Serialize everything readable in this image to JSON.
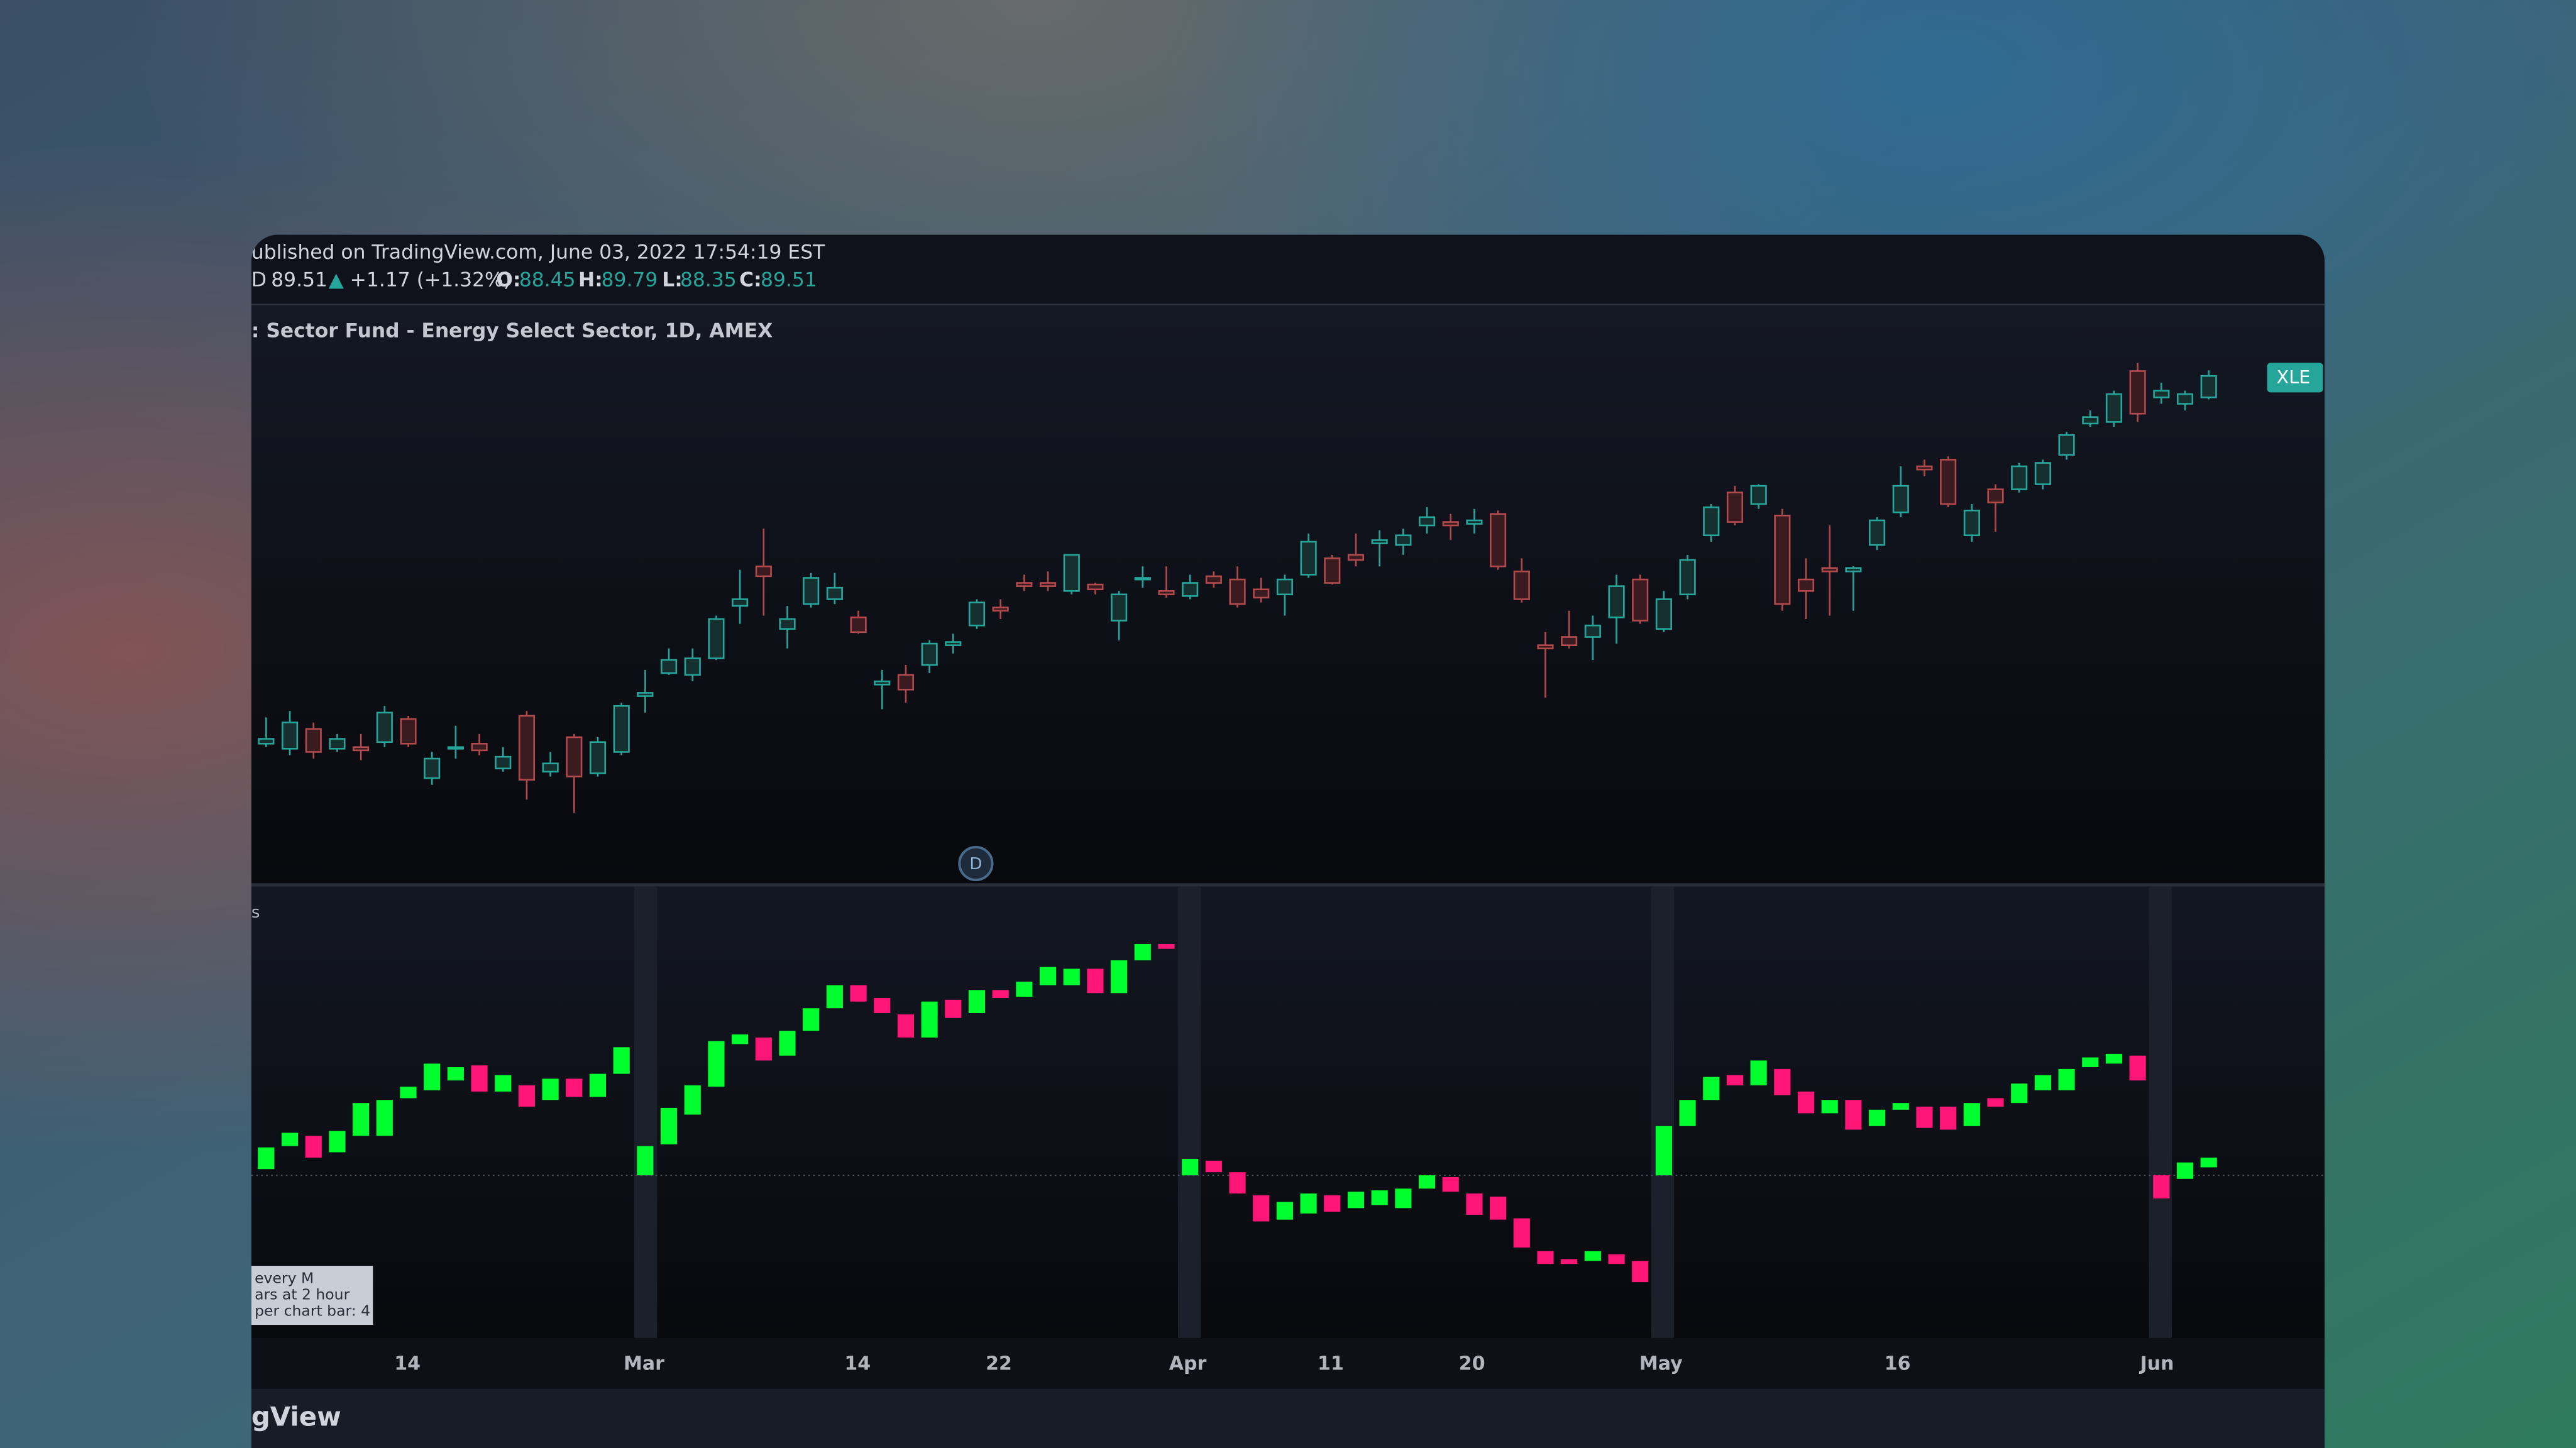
{
  "header": {
    "published": "ublished on TradingView.com, June 03, 2022 17:54:19 EST",
    "quote": {
      "symbol": "D",
      "last": "89.51",
      "arrow": "▲",
      "change": "+1.17 (+1.32%)",
      "o_label": "O:",
      "o": "88.45",
      "h_label": "H:",
      "h": "89.79",
      "l_label": "L:",
      "l": "88.35",
      "c_label": "C:",
      "c": "89.51"
    }
  },
  "chart_data": [
    {
      "type": "candlestick",
      "title": ": Sector Fund - Energy Select Sector, 1D, AMEX",
      "badge": "XLE",
      "up_color": "#26a69a",
      "down_color": "#b24a4d",
      "ylim": [
        64.36,
        93.01
      ],
      "ohlc": [
        [
          71.28,
          72.58,
          71.11,
          71.52
        ],
        [
          71.03,
          72.9,
          70.71,
          72.33
        ],
        [
          72.01,
          72.33,
          70.54,
          70.87
        ],
        [
          71.03,
          71.76,
          70.87,
          71.52
        ],
        [
          71.11,
          71.76,
          70.46,
          70.95
        ],
        [
          71.36,
          73.15,
          71.11,
          72.82
        ],
        [
          72.5,
          72.66,
          71.11,
          71.28
        ],
        [
          69.57,
          70.87,
          69.24,
          70.54
        ],
        [
          71.03,
          72.17,
          70.54,
          71.11
        ],
        [
          71.28,
          71.76,
          70.71,
          70.95
        ],
        [
          70.05,
          71.11,
          69.89,
          70.63
        ],
        [
          72.66,
          72.9,
          68.51,
          69.49
        ],
        [
          69.89,
          70.87,
          69.65,
          70.3
        ],
        [
          71.6,
          71.76,
          67.86,
          69.65
        ],
        [
          69.81,
          71.6,
          69.65,
          71.36
        ],
        [
          70.87,
          73.31,
          70.71,
          73.15
        ],
        [
          73.64,
          74.94,
          72.82,
          73.8
        ],
        [
          74.78,
          76.0,
          74.69,
          75.43
        ],
        [
          74.69,
          76.0,
          74.37,
          75.51
        ],
        [
          75.51,
          77.63,
          75.43,
          77.46
        ],
        [
          78.11,
          79.9,
          77.22,
          78.44
        ],
        [
          80.07,
          81.94,
          77.63,
          79.58
        ],
        [
          76.97,
          78.11,
          76.0,
          77.46
        ],
        [
          78.2,
          79.74,
          78.03,
          79.5
        ],
        [
          78.44,
          79.74,
          78.2,
          79.01
        ],
        [
          77.54,
          77.87,
          76.73,
          76.81
        ],
        [
          74.21,
          74.94,
          72.99,
          74.37
        ],
        [
          74.69,
          75.18,
          73.31,
          73.96
        ],
        [
          75.18,
          76.4,
          74.78,
          76.24
        ],
        [
          76.16,
          76.73,
          75.75,
          76.32
        ],
        [
          77.14,
          78.44,
          76.97,
          78.28
        ],
        [
          78.03,
          78.44,
          77.46,
          77.87
        ],
        [
          79.25,
          79.66,
          78.85,
          79.09
        ],
        [
          79.25,
          79.82,
          78.85,
          79.09
        ],
        [
          78.85,
          80.64,
          78.68,
          80.64
        ],
        [
          79.17,
          79.25,
          78.68,
          78.93
        ],
        [
          77.38,
          78.85,
          76.4,
          78.68
        ],
        [
          79.42,
          80.07,
          79.01,
          79.5
        ],
        [
          78.85,
          80.07,
          78.52,
          78.68
        ],
        [
          78.6,
          79.66,
          78.44,
          79.25
        ],
        [
          79.58,
          79.82,
          79.01,
          79.25
        ],
        [
          79.42,
          80.07,
          78.03,
          78.2
        ],
        [
          78.93,
          79.5,
          78.28,
          78.52
        ],
        [
          78.68,
          79.66,
          77.63,
          79.42
        ],
        [
          79.66,
          81.7,
          79.5,
          81.29
        ],
        [
          80.47,
          80.64,
          79.17,
          79.25
        ],
        [
          80.64,
          81.7,
          80.07,
          80.39
        ],
        [
          81.21,
          81.86,
          80.07,
          81.37
        ],
        [
          81.13,
          81.94,
          80.64,
          81.61
        ],
        [
          82.1,
          83.0,
          81.7,
          82.51
        ],
        [
          82.27,
          82.67,
          81.37,
          82.1
        ],
        [
          82.18,
          82.92,
          81.7,
          82.35
        ],
        [
          82.67,
          82.84,
          79.9,
          80.07
        ],
        [
          79.82,
          80.47,
          78.28,
          78.44
        ],
        [
          76.16,
          76.81,
          73.56,
          76.0
        ],
        [
          76.57,
          77.87,
          76.0,
          76.16
        ],
        [
          76.57,
          77.63,
          75.43,
          77.14
        ],
        [
          77.54,
          79.66,
          76.24,
          79.09
        ],
        [
          79.42,
          79.66,
          77.22,
          77.38
        ],
        [
          76.97,
          78.85,
          76.81,
          78.44
        ],
        [
          78.68,
          80.64,
          78.44,
          80.39
        ],
        [
          81.61,
          83.16,
          81.29,
          83.0
        ],
        [
          83.73,
          84.06,
          82.1,
          82.27
        ],
        [
          83.16,
          84.14,
          82.92,
          84.06
        ],
        [
          82.59,
          82.92,
          77.87,
          78.2
        ],
        [
          79.42,
          80.47,
          77.46,
          78.85
        ],
        [
          79.99,
          82.1,
          77.63,
          79.82
        ],
        [
          79.82,
          80.07,
          77.87,
          79.99
        ],
        [
          81.13,
          82.51,
          80.88,
          82.35
        ],
        [
          82.75,
          85.03,
          82.51,
          84.06
        ],
        [
          85.03,
          85.36,
          84.54,
          84.87
        ],
        [
          85.36,
          85.52,
          83.0,
          83.16
        ],
        [
          81.61,
          83.16,
          81.29,
          82.84
        ],
        [
          83.89,
          84.14,
          81.78,
          83.24
        ],
        [
          83.89,
          85.2,
          83.73,
          85.03
        ],
        [
          84.14,
          85.36,
          83.89,
          85.2
        ],
        [
          85.6,
          86.74,
          85.36,
          86.58
        ],
        [
          87.15,
          87.8,
          86.99,
          87.47
        ],
        [
          87.23,
          88.78,
          86.99,
          88.61
        ],
        [
          89.75,
          90.16,
          87.23,
          87.64
        ],
        [
          88.45,
          89.18,
          88.13,
          88.78
        ],
        [
          88.13,
          88.78,
          87.8,
          88.61
        ],
        [
          88.45,
          89.79,
          88.35,
          89.51
        ]
      ]
    },
    {
      "type": "bodies",
      "title": "s",
      "up_color": "#00ff2e",
      "down_color": "#ff1677",
      "ylim": [
        0,
        100
      ],
      "reference_line": 36.7,
      "notes": [
        "every M",
        "ars at 2 hour",
        "per chart bar: 4"
      ],
      "oc": [
        [
          38.1,
          43.0
        ],
        [
          43.3,
          46.3
        ],
        [
          45.6,
          40.7
        ],
        [
          41.9,
          46.7
        ],
        [
          45.6,
          53.0
        ],
        [
          45.6,
          53.7
        ],
        [
          54.1,
          56.7
        ],
        [
          55.9,
          61.9
        ],
        [
          58.1,
          61.1
        ],
        [
          61.5,
          55.6
        ],
        [
          55.6,
          59.3
        ],
        [
          57.0,
          52.2
        ],
        [
          53.7,
          58.5
        ],
        [
          58.5,
          54.4
        ],
        [
          54.4,
          59.6
        ],
        [
          59.6,
          65.6
        ],
        [
          36.7,
          43.3
        ],
        [
          43.7,
          51.9
        ],
        [
          50.4,
          57.0
        ],
        [
          56.7,
          67.0
        ],
        [
          66.3,
          68.5
        ],
        [
          67.8,
          62.6
        ],
        [
          63.7,
          69.3
        ],
        [
          69.3,
          74.4
        ],
        [
          74.4,
          79.6
        ],
        [
          79.6,
          75.9
        ],
        [
          76.7,
          73.3
        ],
        [
          73.0,
          67.8
        ],
        [
          67.8,
          75.9
        ],
        [
          76.3,
          72.2
        ],
        [
          73.3,
          78.5
        ],
        [
          78.5,
          76.7
        ],
        [
          77.0,
          80.4
        ],
        [
          79.6,
          83.7
        ],
        [
          79.6,
          83.3
        ],
        [
          83.3,
          77.8
        ],
        [
          77.8,
          85.2
        ],
        [
          85.2,
          88.9
        ],
        [
          88.9,
          87.8
        ],
        [
          36.7,
          40.4
        ],
        [
          40.0,
          37.4
        ],
        [
          37.4,
          32.6
        ],
        [
          32.2,
          26.3
        ],
        [
          26.7,
          30.7
        ],
        [
          28.1,
          32.6
        ],
        [
          32.2,
          28.5
        ],
        [
          29.3,
          33.0
        ],
        [
          30.0,
          33.3
        ],
        [
          29.3,
          33.7
        ],
        [
          33.7,
          36.7
        ],
        [
          36.3,
          33.0
        ],
        [
          32.6,
          27.8
        ],
        [
          31.9,
          26.7
        ],
        [
          27.0,
          20.4
        ],
        [
          19.6,
          16.7
        ],
        [
          17.8,
          16.7
        ],
        [
          17.4,
          19.6
        ],
        [
          18.9,
          16.7
        ],
        [
          17.4,
          12.6
        ],
        [
          36.7,
          47.8
        ],
        [
          47.8,
          53.7
        ],
        [
          53.7,
          58.9
        ],
        [
          59.3,
          57.0
        ],
        [
          57.0,
          62.6
        ],
        [
          60.7,
          54.8
        ],
        [
          55.6,
          50.7
        ],
        [
          50.7,
          53.7
        ],
        [
          53.7,
          47.0
        ],
        [
          47.8,
          51.5
        ],
        [
          51.5,
          53.0
        ],
        [
          52.2,
          47.4
        ],
        [
          52.2,
          47.0
        ],
        [
          47.8,
          53.0
        ],
        [
          54.1,
          52.2
        ],
        [
          53.0,
          57.4
        ],
        [
          55.9,
          59.3
        ],
        [
          55.9,
          60.7
        ],
        [
          61.1,
          63.3
        ],
        [
          61.9,
          64.1
        ],
        [
          63.7,
          58.1
        ],
        [
          36.7,
          31.5
        ],
        [
          35.9,
          39.6
        ],
        [
          38.5,
          40.7
        ]
      ]
    }
  ],
  "x_axis_labels": [
    "14",
    "Mar",
    "14",
    "22",
    "Apr",
    "11",
    "20",
    "May",
    "16",
    "Jun"
  ],
  "session_marker": "D",
  "footer": "gView"
}
